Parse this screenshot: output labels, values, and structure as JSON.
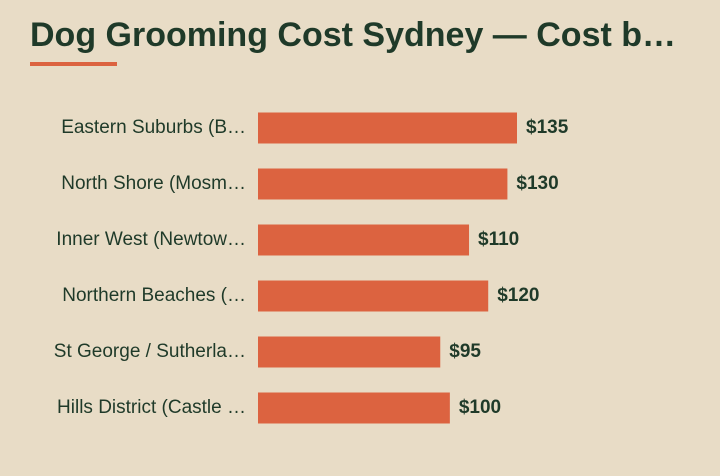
{
  "chart_data": {
    "type": "bar",
    "orientation": "horizontal",
    "title": "Dog Grooming Cost Sydney — Cost b…",
    "categories": [
      "Eastern Suburbs (B…",
      "North Shore (Mosm…",
      "Inner West (Newtow…",
      "Northern Beaches (…",
      "St George / Sutherla…",
      "Hills District (Castle …"
    ],
    "values": [
      135,
      130,
      110,
      120,
      95,
      100
    ],
    "value_labels": [
      "$135",
      "$130",
      "$110",
      "$120",
      "$95",
      "$100"
    ],
    "color": "#dc6340"
  }
}
